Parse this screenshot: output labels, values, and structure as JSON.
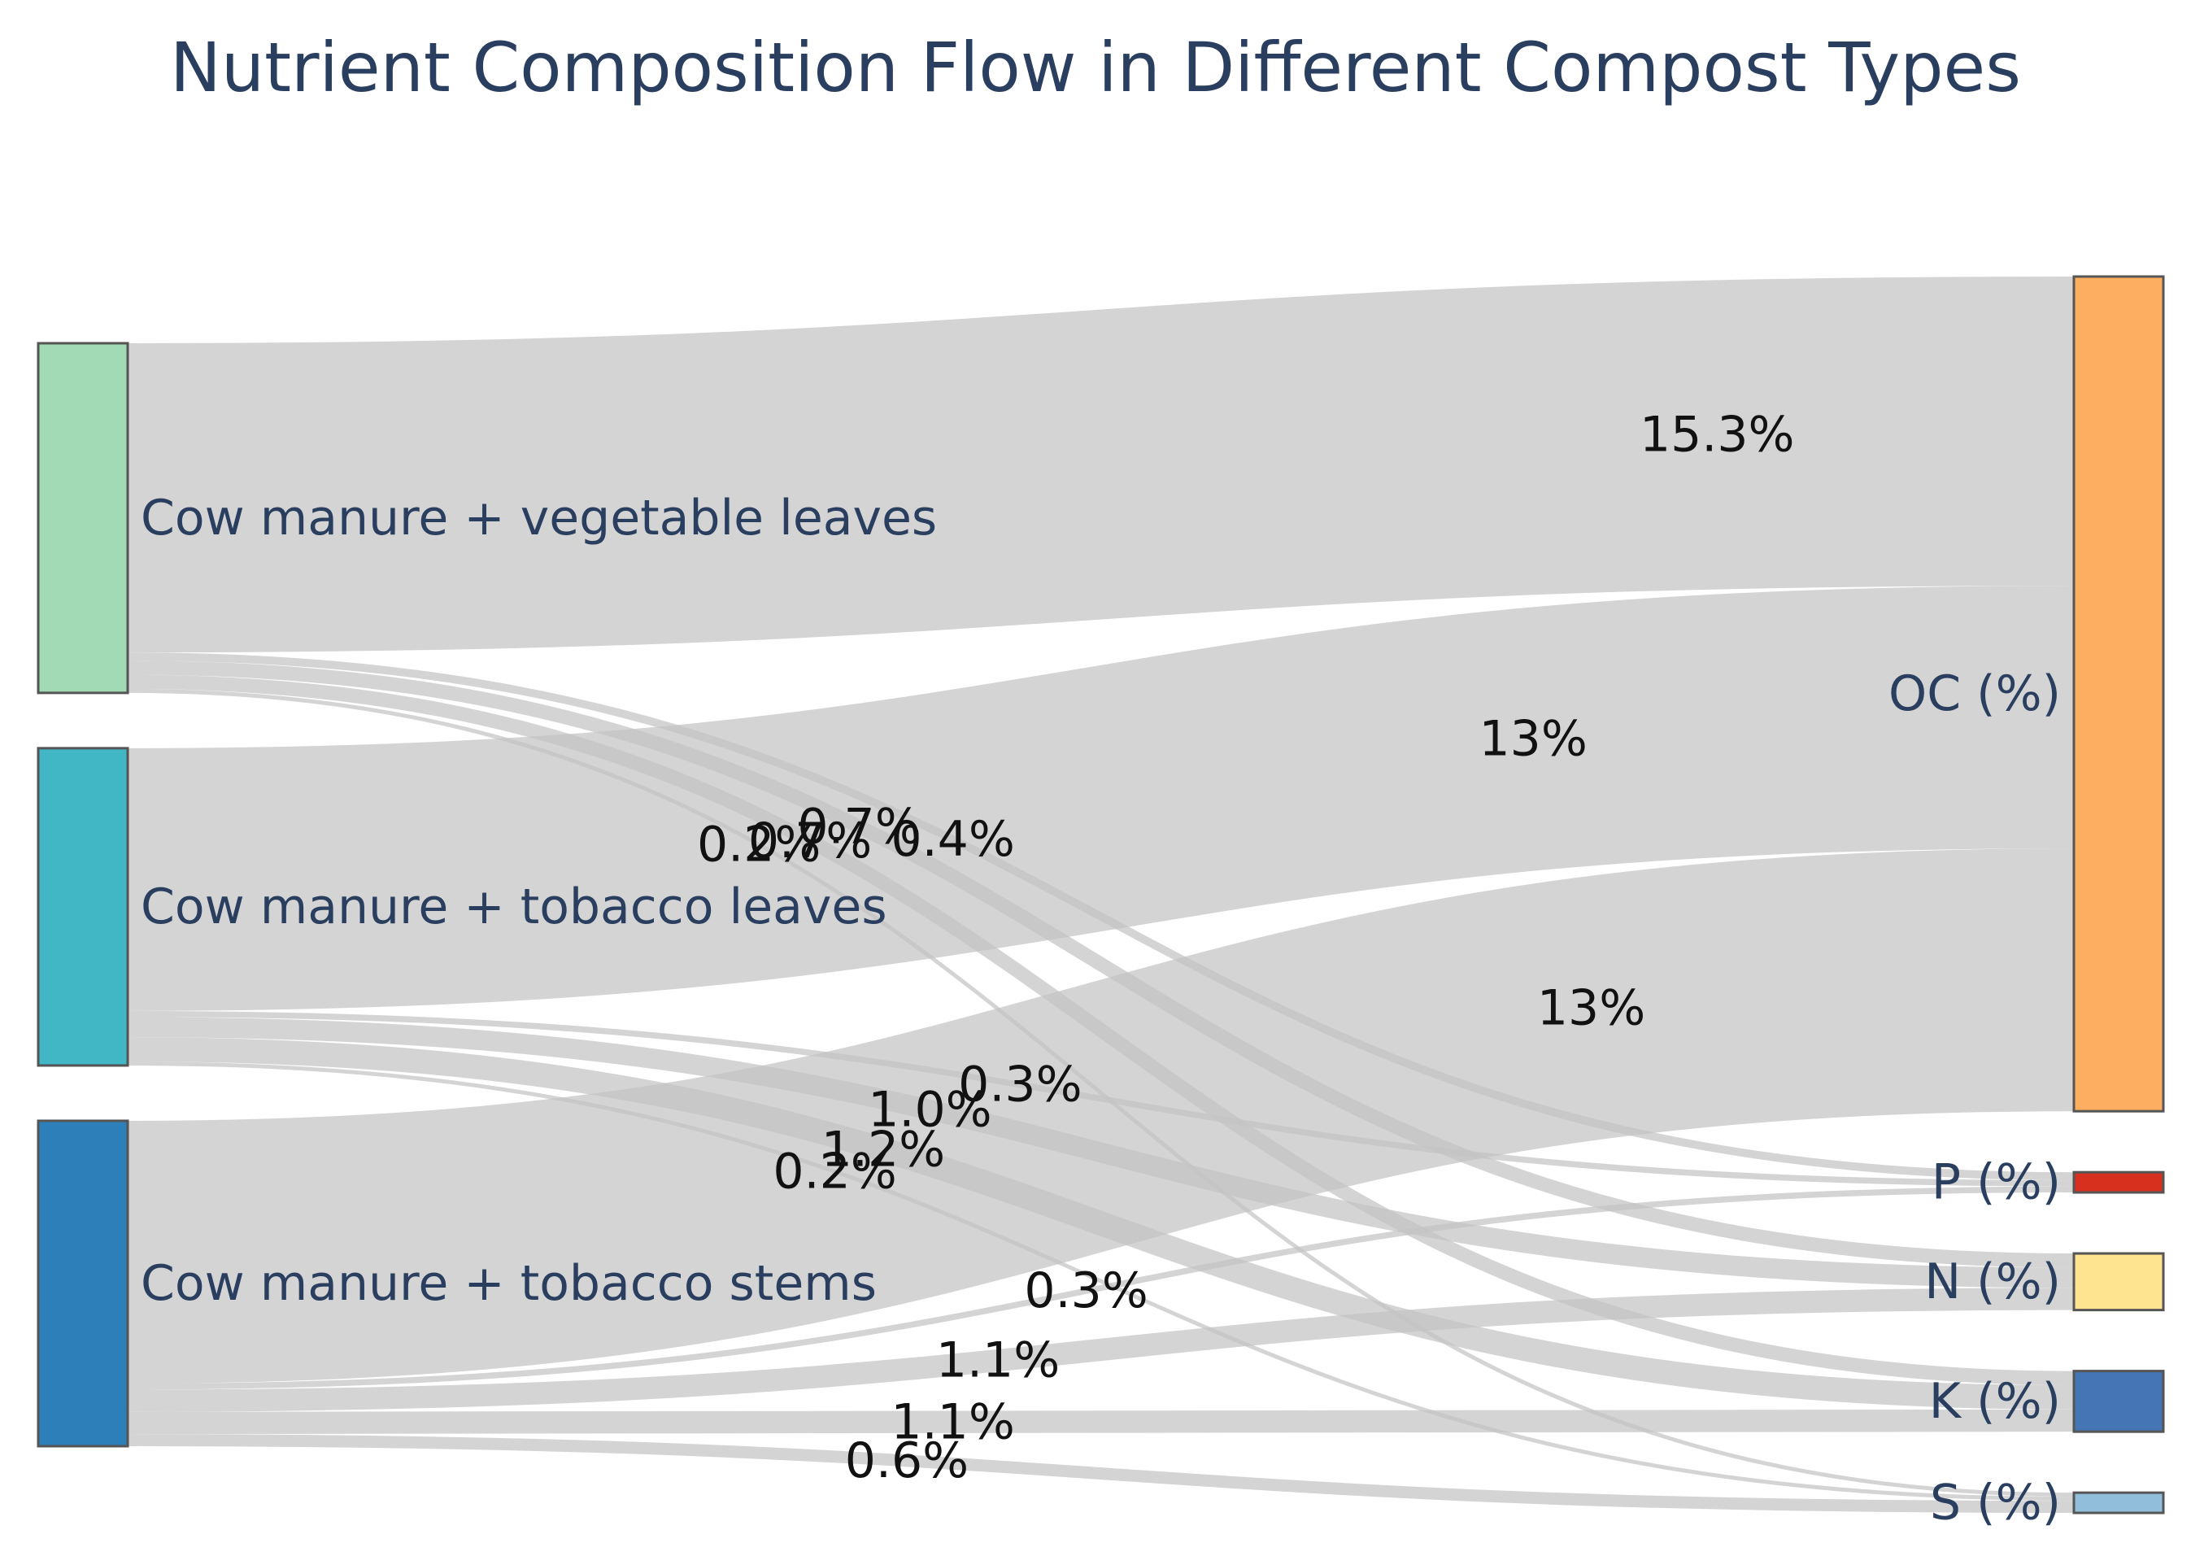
{
  "chart_data": {
    "type": "sankey",
    "title": "Nutrient Composition Flow in Different Compost Types",
    "unit": "%",
    "nodes": [
      {
        "id": "veg",
        "label": "Cow manure + vegetable leaves",
        "side": "source",
        "color": "#a1dab4"
      },
      {
        "id": "tl",
        "label": "Cow manure + tobacco leaves",
        "side": "source",
        "color": "#41b6c4"
      },
      {
        "id": "ts",
        "label": "Cow manure + tobacco stems",
        "side": "source",
        "color": "#2c7fb8"
      },
      {
        "id": "oc",
        "label": "OC (%)",
        "side": "target",
        "color": "#fdae61"
      },
      {
        "id": "p",
        "label": "P (%)",
        "side": "target",
        "color": "#d7301f"
      },
      {
        "id": "n",
        "label": "N (%)",
        "side": "target",
        "color": "#fee391"
      },
      {
        "id": "k",
        "label": "K (%)",
        "side": "target",
        "color": "#4575b4"
      },
      {
        "id": "s",
        "label": "S (%)",
        "side": "target",
        "color": "#91bfdb"
      }
    ],
    "links": [
      {
        "source": "veg",
        "target": "oc",
        "value": 15.3,
        "label": "15.3%"
      },
      {
        "source": "veg",
        "target": "p",
        "value": 0.4,
        "label": "0.4%"
      },
      {
        "source": "veg",
        "target": "n",
        "value": 0.7,
        "label": "0.7%"
      },
      {
        "source": "veg",
        "target": "k",
        "value": 0.7,
        "label": "0.7%"
      },
      {
        "source": "veg",
        "target": "s",
        "value": 0.2,
        "label": "0.2%"
      },
      {
        "source": "tl",
        "target": "oc",
        "value": 13,
        "label": "13%"
      },
      {
        "source": "tl",
        "target": "p",
        "value": 0.3,
        "label": "0.3%"
      },
      {
        "source": "tl",
        "target": "n",
        "value": 1.0,
        "label": "1.0%"
      },
      {
        "source": "tl",
        "target": "k",
        "value": 1.2,
        "label": "1.2%"
      },
      {
        "source": "tl",
        "target": "s",
        "value": 0.2,
        "label": "0.2%"
      },
      {
        "source": "ts",
        "target": "oc",
        "value": 13,
        "label": "13%"
      },
      {
        "source": "ts",
        "target": "p",
        "value": 0.3,
        "label": "0.3%"
      },
      {
        "source": "ts",
        "target": "n",
        "value": 1.1,
        "label": "1.1%"
      },
      {
        "source": "ts",
        "target": "k",
        "value": 1.1,
        "label": "1.1%"
      },
      {
        "source": "ts",
        "target": "s",
        "value": 0.6,
        "label": "0.6%"
      }
    ]
  }
}
